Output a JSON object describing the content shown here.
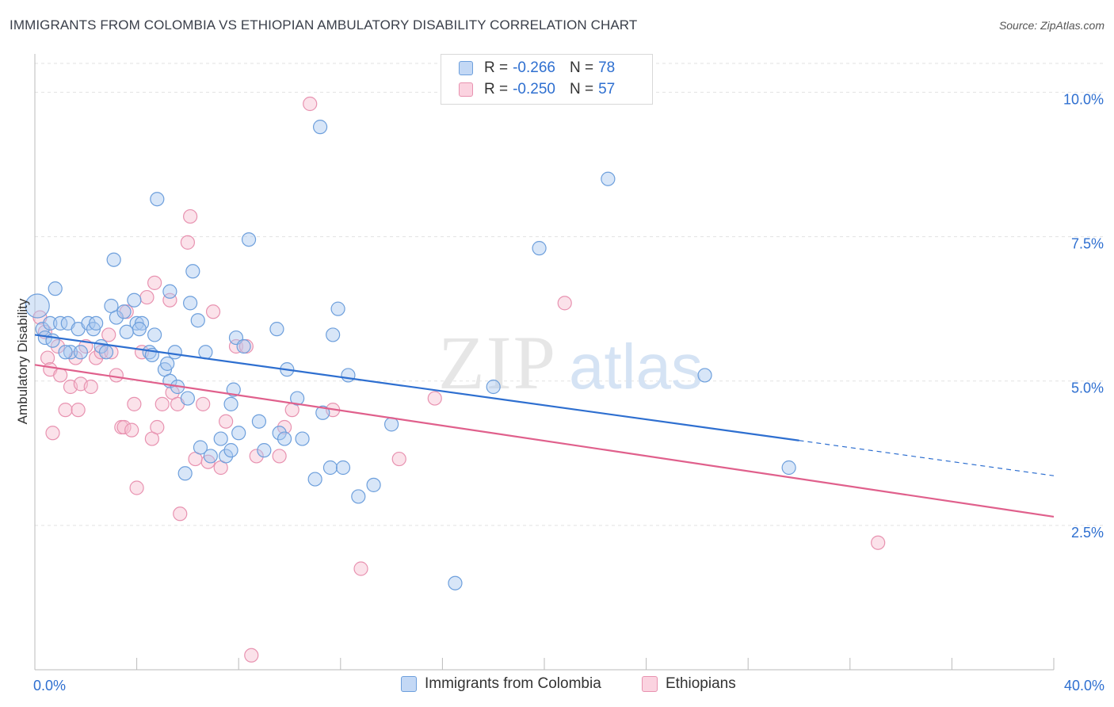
{
  "header": {
    "title": "IMMIGRANTS FROM COLOMBIA VS ETHIOPIAN AMBULATORY DISABILITY CORRELATION CHART",
    "source": "Source: ZipAtlas.com"
  },
  "watermark": {
    "zip": "ZIP",
    "atlas": "atlas"
  },
  "legend": {
    "r_label": "R =",
    "n_label": "N =",
    "items": [
      {
        "r": "-0.266",
        "n": "78"
      },
      {
        "r": "-0.250",
        "n": "57"
      }
    ]
  },
  "colors": {
    "colombia_fill": "#a9c8ef",
    "colombia_stroke": "#6d9fdc",
    "colombia_line": "#2e6fd0",
    "ethiopia_fill": "#f7bfd1",
    "ethiopia_stroke": "#e892b0",
    "ethiopia_line": "#e0608c",
    "axis_text": "#2e6fd0",
    "grid": "#e2e2e2"
  },
  "chart_data": {
    "type": "scatter",
    "title": "IMMIGRANTS FROM COLOMBIA VS ETHIOPIAN AMBULATORY DISABILITY CORRELATION CHART",
    "xlabel": "",
    "ylabel": "Ambulatory Disability",
    "xlim": [
      0,
      40
    ],
    "ylim": [
      0,
      10.5
    ],
    "x_tick_labels": [
      "0.0%",
      "40.0%"
    ],
    "y_ticks": [
      2.5,
      5.0,
      7.5,
      10.0
    ],
    "y_tick_labels": [
      "2.5%",
      "5.0%",
      "7.5%",
      "10.0%"
    ],
    "grid": true,
    "legend_position": "top-center",
    "series": [
      {
        "name": "Immigrants from Colombia",
        "r": -0.266,
        "n": 78,
        "trend": {
          "x0": 0.0,
          "y0": 5.8,
          "x1": 30.0,
          "y1": 3.97,
          "dash_to_x": 40.0,
          "dash_to_y": 3.36
        },
        "points": [
          [
            0.1,
            6.3
          ],
          [
            0.3,
            5.9
          ],
          [
            0.4,
            5.75
          ],
          [
            0.6,
            6.0
          ],
          [
            0.8,
            6.6
          ],
          [
            1.0,
            6.0
          ],
          [
            1.3,
            6.0
          ],
          [
            1.4,
            5.5
          ],
          [
            1.7,
            5.9
          ],
          [
            1.8,
            5.5
          ],
          [
            2.1,
            6.0
          ],
          [
            2.3,
            5.9
          ],
          [
            2.6,
            5.6
          ],
          [
            2.8,
            5.5
          ],
          [
            3.0,
            6.3
          ],
          [
            3.2,
            6.1
          ],
          [
            3.5,
            6.2
          ],
          [
            3.1,
            7.1
          ],
          [
            3.9,
            6.4
          ],
          [
            4.0,
            6.0
          ],
          [
            4.2,
            6.0
          ],
          [
            4.1,
            5.9
          ],
          [
            4.5,
            5.5
          ],
          [
            4.7,
            5.8
          ],
          [
            4.8,
            8.15
          ],
          [
            5.1,
            5.2
          ],
          [
            5.2,
            5.3
          ],
          [
            5.3,
            5.0
          ],
          [
            5.3,
            6.55
          ],
          [
            5.5,
            5.5
          ],
          [
            5.6,
            4.9
          ],
          [
            6.0,
            4.7
          ],
          [
            6.1,
            6.35
          ],
          [
            6.2,
            6.9
          ],
          [
            6.4,
            6.05
          ],
          [
            6.5,
            3.85
          ],
          [
            6.7,
            5.5
          ],
          [
            5.9,
            3.4
          ],
          [
            6.9,
            3.7
          ],
          [
            7.3,
            4.0
          ],
          [
            7.5,
            3.7
          ],
          [
            7.7,
            4.6
          ],
          [
            7.8,
            4.85
          ],
          [
            7.9,
            5.75
          ],
          [
            7.7,
            3.8
          ],
          [
            8.0,
            4.1
          ],
          [
            8.2,
            5.6
          ],
          [
            8.8,
            4.3
          ],
          [
            8.4,
            7.45
          ],
          [
            9.0,
            3.8
          ],
          [
            9.5,
            5.9
          ],
          [
            9.6,
            4.1
          ],
          [
            9.8,
            4.0
          ],
          [
            9.9,
            5.2
          ],
          [
            10.3,
            4.7
          ],
          [
            10.5,
            4.0
          ],
          [
            11.0,
            3.3
          ],
          [
            11.3,
            4.45
          ],
          [
            11.6,
            3.5
          ],
          [
            11.2,
            9.4
          ],
          [
            11.7,
            5.8
          ],
          [
            11.9,
            6.25
          ],
          [
            12.3,
            5.1
          ],
          [
            12.1,
            3.5
          ],
          [
            12.7,
            3.0
          ],
          [
            13.3,
            3.2
          ],
          [
            14.0,
            4.25
          ],
          [
            16.5,
            1.5
          ],
          [
            18.0,
            4.9
          ],
          [
            19.8,
            7.3
          ],
          [
            22.5,
            8.5
          ],
          [
            26.3,
            5.1
          ],
          [
            29.6,
            3.5
          ],
          [
            1.2,
            5.5
          ],
          [
            2.4,
            6.0
          ],
          [
            4.6,
            5.45
          ],
          [
            0.7,
            5.7
          ],
          [
            3.6,
            5.85
          ]
        ]
      },
      {
        "name": "Ethiopians",
        "r": -0.25,
        "n": 57,
        "trend": {
          "x0": 0.0,
          "y0": 5.28,
          "x1": 40.0,
          "y1": 2.65
        },
        "points": [
          [
            0.2,
            6.1
          ],
          [
            0.4,
            5.85
          ],
          [
            0.5,
            5.4
          ],
          [
            0.6,
            5.2
          ],
          [
            0.7,
            4.1
          ],
          [
            0.9,
            5.6
          ],
          [
            1.0,
            5.1
          ],
          [
            1.2,
            4.5
          ],
          [
            1.4,
            4.9
          ],
          [
            1.6,
            5.4
          ],
          [
            1.7,
            4.5
          ],
          [
            1.8,
            4.95
          ],
          [
            2.0,
            5.6
          ],
          [
            2.2,
            4.9
          ],
          [
            2.4,
            5.4
          ],
          [
            2.6,
            5.5
          ],
          [
            2.9,
            5.8
          ],
          [
            3.0,
            5.5
          ],
          [
            3.2,
            5.1
          ],
          [
            3.4,
            4.2
          ],
          [
            3.5,
            4.2
          ],
          [
            3.6,
            6.2
          ],
          [
            3.8,
            4.15
          ],
          [
            3.9,
            4.6
          ],
          [
            4.0,
            3.15
          ],
          [
            4.2,
            5.5
          ],
          [
            4.4,
            6.45
          ],
          [
            4.6,
            4.0
          ],
          [
            4.7,
            6.7
          ],
          [
            4.8,
            4.2
          ],
          [
            5.0,
            4.6
          ],
          [
            5.3,
            6.4
          ],
          [
            5.4,
            4.8
          ],
          [
            5.6,
            4.6
          ],
          [
            5.7,
            2.7
          ],
          [
            6.0,
            7.4
          ],
          [
            6.1,
            7.85
          ],
          [
            6.3,
            3.65
          ],
          [
            6.6,
            4.6
          ],
          [
            6.8,
            3.6
          ],
          [
            7.0,
            6.2
          ],
          [
            7.3,
            3.5
          ],
          [
            7.5,
            4.3
          ],
          [
            7.9,
            5.6
          ],
          [
            8.3,
            5.6
          ],
          [
            8.5,
            0.25
          ],
          [
            8.7,
            3.7
          ],
          [
            9.6,
            3.7
          ],
          [
            9.8,
            4.2
          ],
          [
            10.1,
            4.5
          ],
          [
            10.8,
            9.8
          ],
          [
            11.7,
            4.5
          ],
          [
            12.8,
            1.75
          ],
          [
            14.3,
            3.65
          ],
          [
            15.7,
            4.7
          ],
          [
            20.8,
            6.35
          ],
          [
            33.1,
            2.2
          ]
        ]
      }
    ]
  },
  "bottom_legend": {
    "items": [
      "Immigrants from Colombia",
      "Ethiopians"
    ]
  }
}
